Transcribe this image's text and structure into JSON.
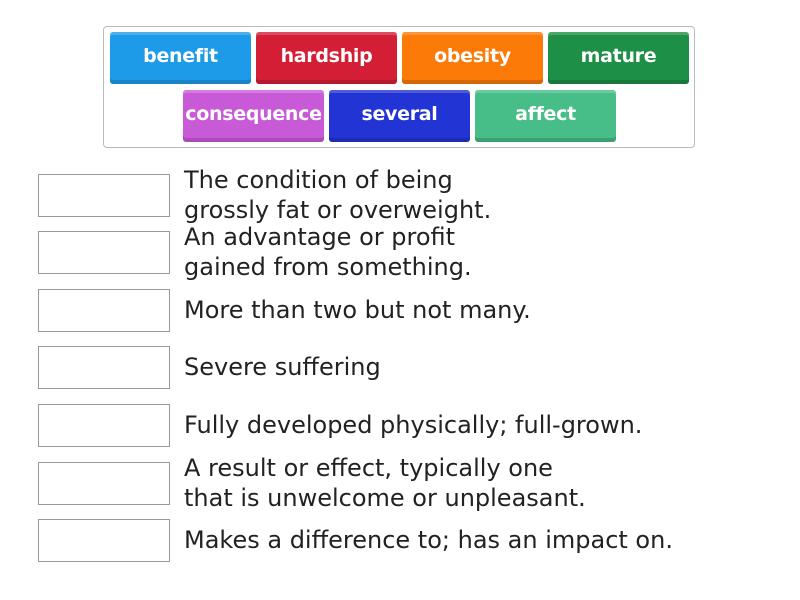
{
  "tiles": [
    {
      "label": "benefit",
      "color": "#1e9be8"
    },
    {
      "label": "hardship",
      "color": "#d41e36"
    },
    {
      "label": "obesity",
      "color": "#fb7a08"
    },
    {
      "label": "mature",
      "color": "#1e8f46"
    },
    {
      "label": "consequence",
      "color": "#c85ad8"
    },
    {
      "label": "several",
      "color": "#2234d4"
    },
    {
      "label": "affect",
      "color": "#47bd88"
    }
  ],
  "definitions": [
    "The condition of being\ngrossly fat or overweight.",
    "An advantage or profit\ngained from something.",
    "More than two but not many.",
    "Severe suffering",
    "Fully developed physically; full-grown.",
    "A result or effect, typically one\nthat is unwelcome or unpleasant.",
    "Makes a difference to; has an impact on."
  ]
}
